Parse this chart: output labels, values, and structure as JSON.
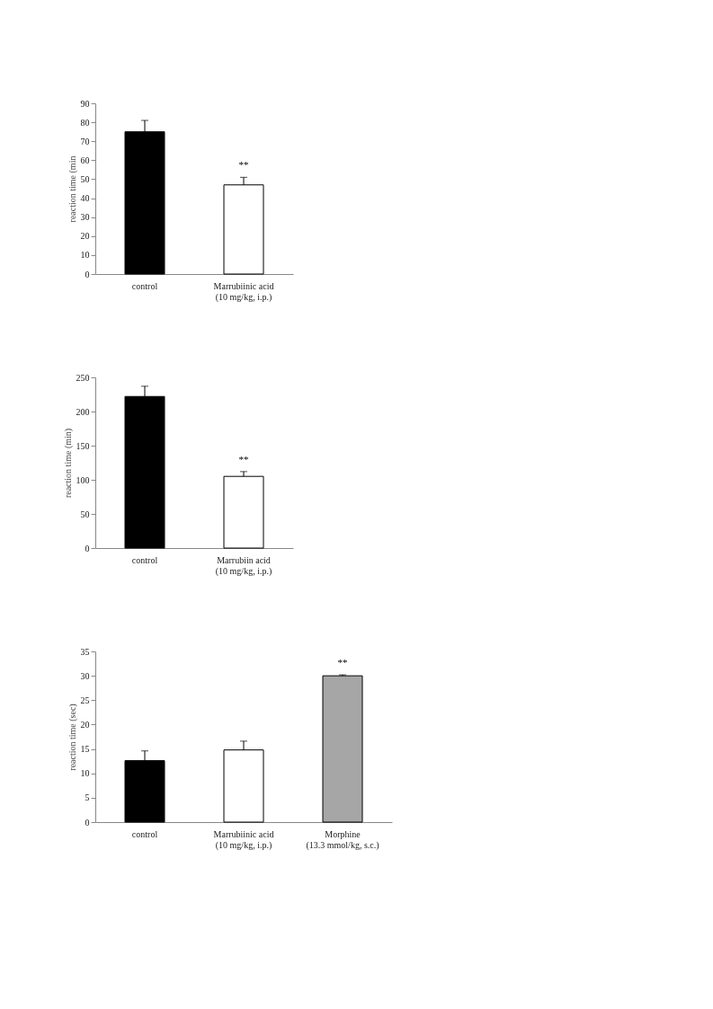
{
  "chart_data": [
    {
      "type": "bar",
      "ylabel": "reaction time (min",
      "categories": [
        "control",
        "Marrubiinic acid\n(10 mg/kg, i.p.)"
      ],
      "values": [
        75,
        47
      ],
      "colors": [
        "#000000",
        "#ffffff"
      ],
      "errors": [
        [
          75,
          81
        ],
        [
          47,
          51
        ]
      ],
      "ylim": [
        0,
        90
      ],
      "yticks": [
        0,
        10,
        20,
        30,
        40,
        50,
        60,
        70,
        80,
        90
      ],
      "grid": false,
      "legend": false,
      "annotations": [
        {
          "text": "**",
          "x": "Marrubiinic acid\n(10 mg/kg, i.p.)",
          "y": 51
        }
      ]
    },
    {
      "type": "bar",
      "ylabel": "reaction time (min)",
      "categories": [
        "control",
        "Marrubiin acid\n(10 mg/kg, i.p.)"
      ],
      "values": [
        222,
        105
      ],
      "colors": [
        "#000000",
        "#ffffff"
      ],
      "errors": [
        [
          222,
          237
        ],
        [
          105,
          112
        ]
      ],
      "ylim": [
        0,
        250
      ],
      "yticks": [
        0,
        50,
        100,
        150,
        200,
        250
      ],
      "grid": false,
      "legend": false,
      "annotations": [
        {
          "text": "**",
          "x": "Marrubiin acid\n(10 mg/kg, i.p.)",
          "y": 112
        }
      ]
    },
    {
      "type": "bar",
      "ylabel": "reaction time (sec)",
      "categories": [
        "control",
        "Marrubiinic acid\n(10 mg/kg, i.p.)",
        "Morphine\n(13.3 mmol/kg, s.c.)"
      ],
      "values": [
        12.6,
        14.8,
        30.0
      ],
      "colors": [
        "#000000",
        "#ffffff",
        "#a6a6a6"
      ],
      "errors": [
        [
          12.6,
          14.6
        ],
        [
          14.8,
          16.6
        ],
        [
          30.0,
          30.2
        ]
      ],
      "ylim": [
        0,
        35
      ],
      "yticks": [
        0,
        5,
        10,
        15,
        20,
        25,
        30,
        35
      ],
      "grid": false,
      "legend": false,
      "annotations": [
        {
          "text": "**",
          "x": "Morphine\n(13.3 mmol/kg, s.c.)",
          "y": 30.2
        }
      ]
    }
  ]
}
